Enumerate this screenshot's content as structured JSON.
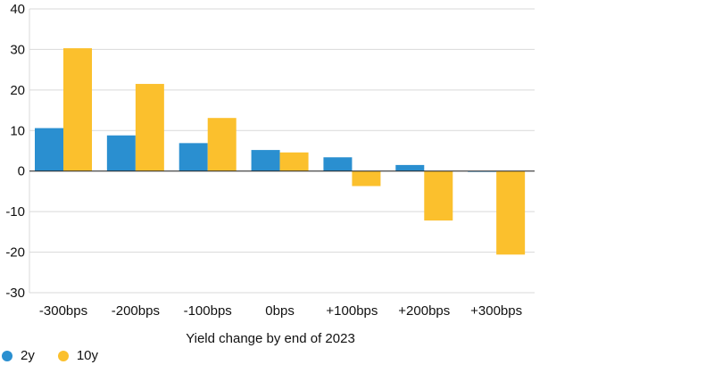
{
  "chart_data": {
    "type": "bar",
    "categories": [
      "-300bps",
      "-200bps",
      "-100bps",
      "0bps",
      "+100bps",
      "+200bps",
      "+300bps"
    ],
    "series": [
      {
        "name": "2y",
        "color": "#2a8fd0",
        "values": [
          10.6,
          8.8,
          6.9,
          5.2,
          3.4,
          1.5,
          -0.2
        ]
      },
      {
        "name": "10y",
        "color": "#fbc02d",
        "values": [
          30.3,
          21.5,
          13.1,
          4.6,
          -3.7,
          -12.2,
          -20.6
        ]
      }
    ],
    "title": "",
    "xlabel": "Yield change by end of 2023",
    "ylabel": "",
    "ylim": [
      -30,
      40
    ],
    "yticks": [
      40,
      30,
      20,
      10,
      0,
      -10,
      -20,
      -30
    ],
    "ytick_labels": [
      "40",
      "30",
      "20",
      "10",
      "0",
      "-10",
      "-20",
      "-30"
    ],
    "grid": "horizontal",
    "legend_position": "bottom-left"
  }
}
